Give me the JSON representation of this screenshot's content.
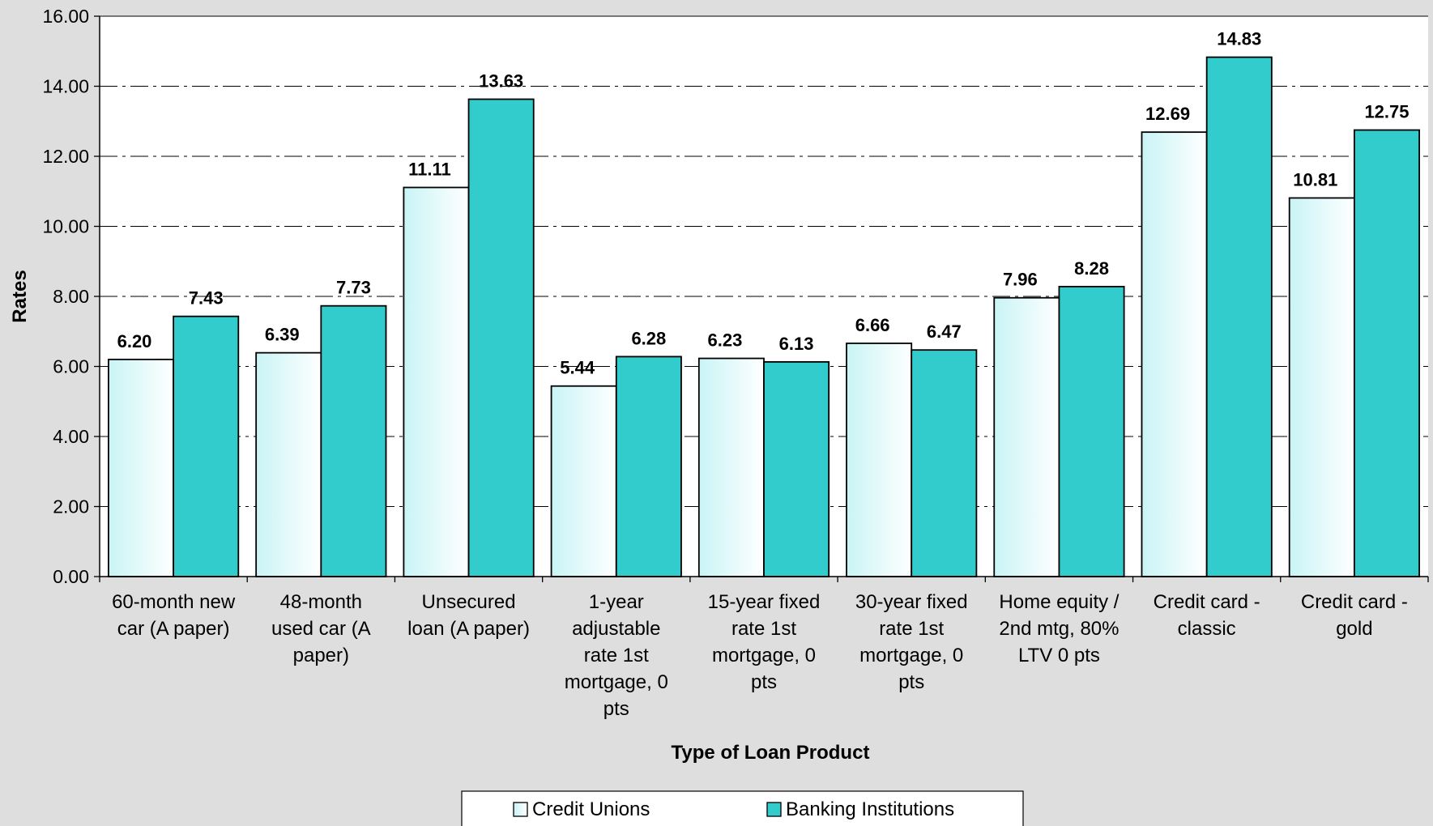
{
  "chart_data": {
    "type": "bar",
    "categories": [
      [
        "60-month new",
        "car (A paper)"
      ],
      [
        "48-month",
        "used car (A",
        "paper)"
      ],
      [
        "Unsecured",
        "loan (A paper)"
      ],
      [
        "1-year",
        "adjustable",
        "rate 1st",
        "mortgage, 0",
        "pts"
      ],
      [
        "15-year fixed",
        "rate 1st",
        "mortgage, 0",
        "pts"
      ],
      [
        "30-year fixed",
        "rate 1st",
        "mortgage, 0",
        "pts"
      ],
      [
        "Home equity /",
        "2nd mtg, 80%",
        "LTV 0 pts"
      ],
      [
        "Credit card -",
        "classic"
      ],
      [
        "Credit card -",
        "gold"
      ]
    ],
    "series": [
      {
        "name": "Credit Unions",
        "values": [
          6.2,
          6.39,
          11.11,
          5.44,
          6.23,
          6.66,
          7.96,
          12.69,
          10.81
        ],
        "labels": [
          "6.20",
          "6.39",
          "11.11",
          "5.44",
          "6.23",
          "6.66",
          "7.96",
          "12.69",
          "10.81"
        ],
        "color": "#e6fbfb"
      },
      {
        "name": "Banking Institutions",
        "values": [
          7.43,
          7.73,
          13.63,
          6.28,
          6.13,
          6.47,
          8.28,
          14.83,
          12.75
        ],
        "labels": [
          "7.43",
          "7.73",
          "13.63",
          "6.28",
          "6.13",
          "6.47",
          "8.28",
          "14.83",
          "12.75"
        ],
        "color": "#33cccc"
      }
    ],
    "yticks": [
      "0.00",
      "2.00",
      "4.00",
      "6.00",
      "8.00",
      "10.00",
      "12.00",
      "14.00",
      "16.00"
    ],
    "ylim": [
      0,
      16
    ],
    "ytick_step": 2,
    "xlabel": "Type of Loan Product",
    "ylabel": "Rates",
    "grid": true,
    "legend_position": "bottom-center",
    "background_color": "#dedede",
    "plot_background_color": "#ffffff"
  }
}
